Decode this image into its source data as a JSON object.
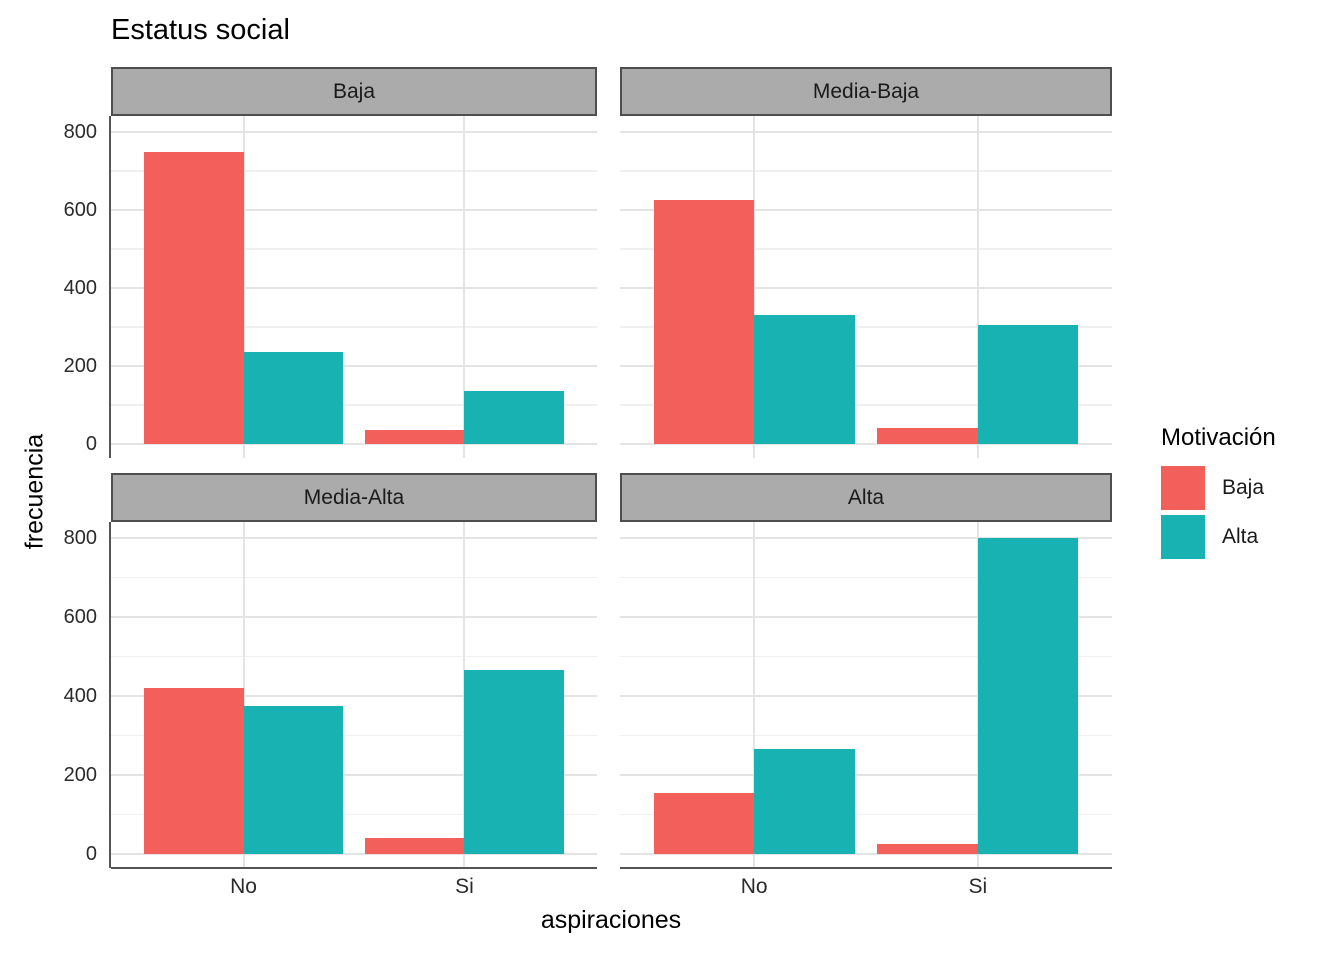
{
  "title": "Estatus social",
  "axes": {
    "x_label": "aspiraciones",
    "y_label": "frecuencia",
    "x_tick_labels": [
      "No",
      "Si"
    ],
    "y_tick_labels": [
      "0",
      "200",
      "400",
      "600",
      "800"
    ]
  },
  "legend": {
    "title": "Motivación",
    "position": "right",
    "entries": [
      {
        "label": "Baja",
        "color": "#F3605C"
      },
      {
        "label": "Alta",
        "color": "#18B2B2"
      }
    ]
  },
  "colors": {
    "bar_motivacion_baja": "#F3605C",
    "bar_motivacion_alta": "#18B2B2",
    "strip_fill": "#ABABAB",
    "strip_border": "#4E4E4E",
    "grid_major": "#E4E4E4",
    "grid_minor": "#F0F0F0",
    "axis_line": "#555555",
    "panel_background": "#FFFFFF",
    "text": "#1A1A1A"
  },
  "chart_data": {
    "type": "bar",
    "grouping": "dodge",
    "title": "Estatus social",
    "facet_variable": "Estatus social",
    "facet_layout": [
      "Baja",
      "Media-Baja",
      "Media-Alta",
      "Alta"
    ],
    "categories": [
      "No",
      "Si"
    ],
    "xlabel": "aspiraciones",
    "ylabel": "frecuencia",
    "ylim": [
      0,
      800
    ],
    "y_ticks": [
      0,
      200,
      400,
      600,
      800
    ],
    "y_minor_ticks": [
      100,
      300,
      500,
      700
    ],
    "grid": true,
    "legend_title": "Motivación",
    "legend_position": "right",
    "series": [
      {
        "name": "Baja",
        "color": "#F3605C"
      },
      {
        "name": "Alta",
        "color": "#18B2B2"
      }
    ],
    "facets": [
      {
        "name": "Baja",
        "values": {
          "Baja": [
            750,
            35
          ],
          "Alta": [
            235,
            135
          ]
        }
      },
      {
        "name": "Media-Baja",
        "values": {
          "Baja": [
            625,
            40
          ],
          "Alta": [
            330,
            305
          ]
        }
      },
      {
        "name": "Media-Alta",
        "values": {
          "Baja": [
            420,
            40
          ],
          "Alta": [
            375,
            465
          ]
        }
      },
      {
        "name": "Alta",
        "values": {
          "Baja": [
            155,
            25
          ],
          "Alta": [
            265,
            800
          ]
        }
      }
    ]
  }
}
